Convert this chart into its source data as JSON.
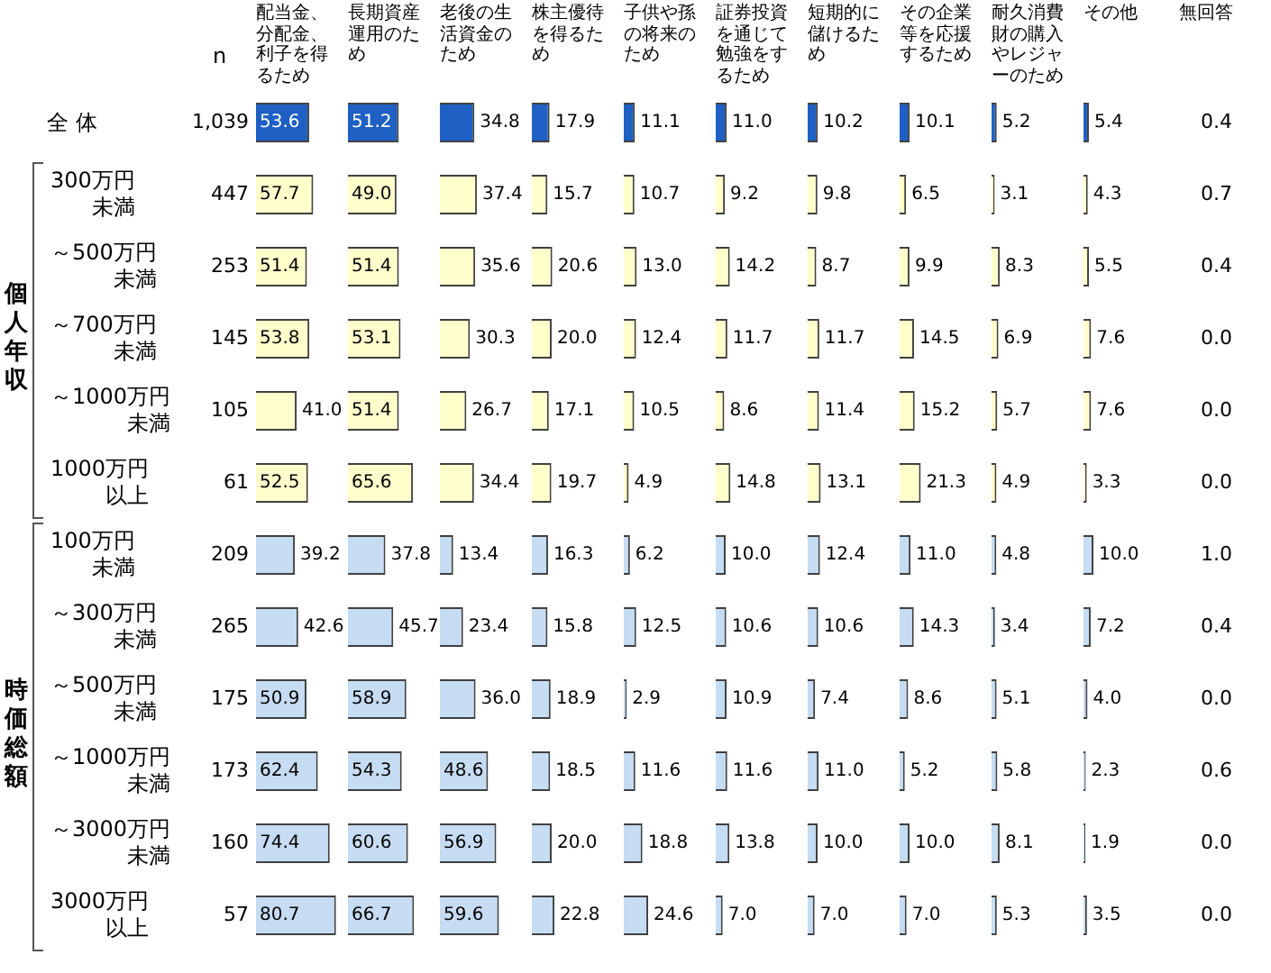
{
  "chart_data": [
    {
      "type": "other",
      "title": "n",
      "categories": [
        "全 体",
        "300万円未満",
        "～500万円未満",
        "～700万円未満",
        "～1000万円未満",
        "1000万円以上",
        "100万円未満",
        "～300万円未満",
        "～500万円未満",
        "～1000万円未満",
        "～3000万円未満",
        "3000万円以上"
      ],
      "values": [
        1039,
        447,
        253,
        145,
        105,
        61,
        209,
        265,
        175,
        173,
        160,
        57
      ],
      "value_labels": [
        "1,039",
        "447",
        "253",
        "145",
        "105",
        "61",
        "209",
        "265",
        "175",
        "173",
        "160",
        "57"
      ],
      "annotations": [
        "個人年収",
        "時価総額"
      ]
    },
    {
      "type": "bar",
      "orientation": "horizontal",
      "title": "配当金、分配金、利子を得るため",
      "categories": [
        null,
        null,
        null,
        null,
        null,
        null,
        null,
        null,
        null,
        null,
        null,
        null
      ],
      "values": [
        53.6,
        57.7,
        51.4,
        53.8,
        41.0,
        52.5,
        39.2,
        42.6,
        50.9,
        62.4,
        74.4,
        80.7
      ],
      "value_labels": [
        "53.6",
        "57.7",
        "51.4",
        "53.8",
        "41.0",
        "52.5",
        "39.2",
        "42.6",
        "50.9",
        "62.4",
        "74.4",
        "80.7"
      ],
      "colors": [
        "#1f60c4",
        "#ffffcc",
        "#ffffcc",
        "#ffffcc",
        "#ffffcc",
        "#ffffcc",
        "#c6dcf2",
        "#c6dcf2",
        "#c6dcf2",
        "#c6dcf2",
        "#c6dcf2",
        "#c6dcf2"
      ],
      "tick_labels": false
    },
    {
      "type": "bar",
      "orientation": "horizontal",
      "title": "長期資産運用のため",
      "categories": [
        null,
        null,
        null,
        null,
        null,
        null,
        null,
        null,
        null,
        null,
        null,
        null
      ],
      "values": [
        51.2,
        49.0,
        51.4,
        53.1,
        51.4,
        65.6,
        37.8,
        45.7,
        58.9,
        54.3,
        60.6,
        66.7
      ],
      "value_labels": [
        "51.2",
        "49.0",
        "51.4",
        "53.1",
        "51.4",
        "65.6",
        "37.8",
        "45.7",
        "58.9",
        "54.3",
        "60.6",
        "66.7"
      ],
      "colors": [
        "#1f60c4",
        "#ffffcc",
        "#ffffcc",
        "#ffffcc",
        "#ffffcc",
        "#ffffcc",
        "#c6dcf2",
        "#c6dcf2",
        "#c6dcf2",
        "#c6dcf2",
        "#c6dcf2",
        "#c6dcf2"
      ],
      "tick_labels": false
    },
    {
      "type": "bar",
      "orientation": "horizontal",
      "title": "老後の生活資金のため",
      "categories": [
        null,
        null,
        null,
        null,
        null,
        null,
        null,
        null,
        null,
        null,
        null,
        null
      ],
      "values": [
        34.8,
        37.4,
        35.6,
        30.3,
        26.7,
        34.4,
        13.4,
        23.4,
        36.0,
        48.6,
        56.9,
        59.6
      ],
      "value_labels": [
        "34.8",
        "37.4",
        "35.6",
        "30.3",
        "26.7",
        "34.4",
        "13.4",
        "23.4",
        "36.0",
        "48.6",
        "56.9",
        "59.6"
      ],
      "colors": [
        "#1f60c4",
        "#ffffcc",
        "#ffffcc",
        "#ffffcc",
        "#ffffcc",
        "#ffffcc",
        "#c6dcf2",
        "#c6dcf2",
        "#c6dcf2",
        "#c6dcf2",
        "#c6dcf2",
        "#c6dcf2"
      ],
      "tick_labels": false
    },
    {
      "type": "bar",
      "orientation": "horizontal",
      "title": "株主優待を得るため",
      "categories": [
        null,
        null,
        null,
        null,
        null,
        null,
        null,
        null,
        null,
        null,
        null,
        null
      ],
      "values": [
        17.9,
        15.7,
        20.6,
        20.0,
        17.1,
        19.7,
        16.3,
        15.8,
        18.9,
        18.5,
        20.0,
        22.8
      ],
      "value_labels": [
        "17.9",
        "15.7",
        "20.6",
        "20.0",
        "17.1",
        "19.7",
        "16.3",
        "15.8",
        "18.9",
        "18.5",
        "20.0",
        "22.8"
      ],
      "colors": [
        "#1f60c4",
        "#ffffcc",
        "#ffffcc",
        "#ffffcc",
        "#ffffcc",
        "#ffffcc",
        "#c6dcf2",
        "#c6dcf2",
        "#c6dcf2",
        "#c6dcf2",
        "#c6dcf2",
        "#c6dcf2"
      ],
      "tick_labels": false
    },
    {
      "type": "bar",
      "orientation": "horizontal",
      "title": "子供や孫の将来のため",
      "categories": [
        null,
        null,
        null,
        null,
        null,
        null,
        null,
        null,
        null,
        null,
        null,
        null
      ],
      "values": [
        11.1,
        10.7,
        13.0,
        12.4,
        10.5,
        4.9,
        6.2,
        12.5,
        2.9,
        11.6,
        18.8,
        24.6
      ],
      "value_labels": [
        "11.1",
        "10.7",
        "13.0",
        "12.4",
        "10.5",
        "4.9",
        "6.2",
        "12.5",
        "2.9",
        "11.6",
        "18.8",
        "24.6"
      ],
      "colors": [
        "#1f60c4",
        "#ffffcc",
        "#ffffcc",
        "#ffffcc",
        "#ffffcc",
        "#ffffcc",
        "#c6dcf2",
        "#c6dcf2",
        "#c6dcf2",
        "#c6dcf2",
        "#c6dcf2",
        "#c6dcf2"
      ],
      "tick_labels": false
    },
    {
      "type": "bar",
      "orientation": "horizontal",
      "title": "証券投資を通じて勉強をするため",
      "categories": [
        null,
        null,
        null,
        null,
        null,
        null,
        null,
        null,
        null,
        null,
        null,
        null
      ],
      "values": [
        11.0,
        9.2,
        14.2,
        11.7,
        8.6,
        14.8,
        10.0,
        10.6,
        10.9,
        11.6,
        13.8,
        7.0
      ],
      "value_labels": [
        "11.0",
        "9.2",
        "14.2",
        "11.7",
        "8.6",
        "14.8",
        "10.0",
        "10.6",
        "10.9",
        "11.6",
        "13.8",
        "7.0"
      ],
      "colors": [
        "#1f60c4",
        "#ffffcc",
        "#ffffcc",
        "#ffffcc",
        "#ffffcc",
        "#ffffcc",
        "#c6dcf2",
        "#c6dcf2",
        "#c6dcf2",
        "#c6dcf2",
        "#c6dcf2",
        "#c6dcf2"
      ],
      "tick_labels": false
    },
    {
      "type": "bar",
      "orientation": "horizontal",
      "title": "短期的に儲けるため",
      "categories": [
        null,
        null,
        null,
        null,
        null,
        null,
        null,
        null,
        null,
        null,
        null,
        null
      ],
      "values": [
        10.2,
        9.8,
        8.7,
        11.7,
        11.4,
        13.1,
        12.4,
        10.6,
        7.4,
        11.0,
        10.0,
        7.0
      ],
      "value_labels": [
        "10.2",
        "9.8",
        "8.7",
        "11.7",
        "11.4",
        "13.1",
        "12.4",
        "10.6",
        "7.4",
        "11.0",
        "10.0",
        "7.0"
      ],
      "colors": [
        "#1f60c4",
        "#ffffcc",
        "#ffffcc",
        "#ffffcc",
        "#ffffcc",
        "#ffffcc",
        "#c6dcf2",
        "#c6dcf2",
        "#c6dcf2",
        "#c6dcf2",
        "#c6dcf2",
        "#c6dcf2"
      ],
      "tick_labels": false
    },
    {
      "type": "bar",
      "orientation": "horizontal",
      "title": "その企業等を応援するため",
      "categories": [
        null,
        null,
        null,
        null,
        null,
        null,
        null,
        null,
        null,
        null,
        null,
        null
      ],
      "values": [
        10.1,
        6.5,
        9.9,
        14.5,
        15.2,
        21.3,
        11.0,
        14.3,
        8.6,
        5.2,
        10.0,
        7.0
      ],
      "value_labels": [
        "10.1",
        "6.5",
        "9.9",
        "14.5",
        "15.2",
        "21.3",
        "11.0",
        "14.3",
        "8.6",
        "5.2",
        "10.0",
        "7.0"
      ],
      "colors": [
        "#1f60c4",
        "#ffffcc",
        "#ffffcc",
        "#ffffcc",
        "#ffffcc",
        "#ffffcc",
        "#c6dcf2",
        "#c6dcf2",
        "#c6dcf2",
        "#c6dcf2",
        "#c6dcf2",
        "#c6dcf2"
      ],
      "tick_labels": false
    },
    {
      "type": "bar",
      "orientation": "horizontal",
      "title": "耐久消費財の購入やレジャーのため",
      "categories": [
        null,
        null,
        null,
        null,
        null,
        null,
        null,
        null,
        null,
        null,
        null,
        null
      ],
      "values": [
        5.2,
        3.1,
        8.3,
        6.9,
        5.7,
        4.9,
        4.8,
        3.4,
        5.1,
        5.8,
        8.1,
        5.3
      ],
      "value_labels": [
        "5.2",
        "3.1",
        "8.3",
        "6.9",
        "5.7",
        "4.9",
        "4.8",
        "3.4",
        "5.1",
        "5.8",
        "8.1",
        "5.3"
      ],
      "colors": [
        "#1f60c4",
        "#ffffcc",
        "#ffffcc",
        "#ffffcc",
        "#ffffcc",
        "#ffffcc",
        "#c6dcf2",
        "#c6dcf2",
        "#c6dcf2",
        "#c6dcf2",
        "#c6dcf2",
        "#c6dcf2"
      ],
      "tick_labels": false
    },
    {
      "type": "bar",
      "orientation": "horizontal",
      "title": "その他",
      "categories": [
        null,
        null,
        null,
        null,
        null,
        null,
        null,
        null,
        null,
        null,
        null,
        null
      ],
      "values": [
        5.4,
        4.3,
        5.5,
        7.6,
        7.6,
        3.3,
        10.0,
        7.2,
        4.0,
        2.3,
        1.9,
        3.5
      ],
      "value_labels": [
        "5.4",
        "4.3",
        "5.5",
        "7.6",
        "7.6",
        "3.3",
        "10.0",
        "7.2",
        "4.0",
        "2.3",
        "1.9",
        "3.5"
      ],
      "colors": [
        "#1f60c4",
        "#ffffcc",
        "#ffffcc",
        "#ffffcc",
        "#ffffcc",
        "#ffffcc",
        "#c6dcf2",
        "#c6dcf2",
        "#c6dcf2",
        "#c6dcf2",
        "#c6dcf2",
        "#c6dcf2"
      ],
      "tick_labels": false
    },
    {
      "type": "other",
      "title": "無回答",
      "values": [
        0.4,
        0.7,
        0.4,
        0.0,
        0.0,
        0.0,
        1.0,
        0.4,
        0.0,
        0.6,
        0.0,
        0.0
      ],
      "value_labels": [
        "0.4",
        "0.7",
        "0.4",
        "0.0",
        "0.0",
        "0.0",
        "1.0",
        "0.4",
        "0.0",
        "0.6",
        "0.0",
        "0.0"
      ]
    }
  ]
}
